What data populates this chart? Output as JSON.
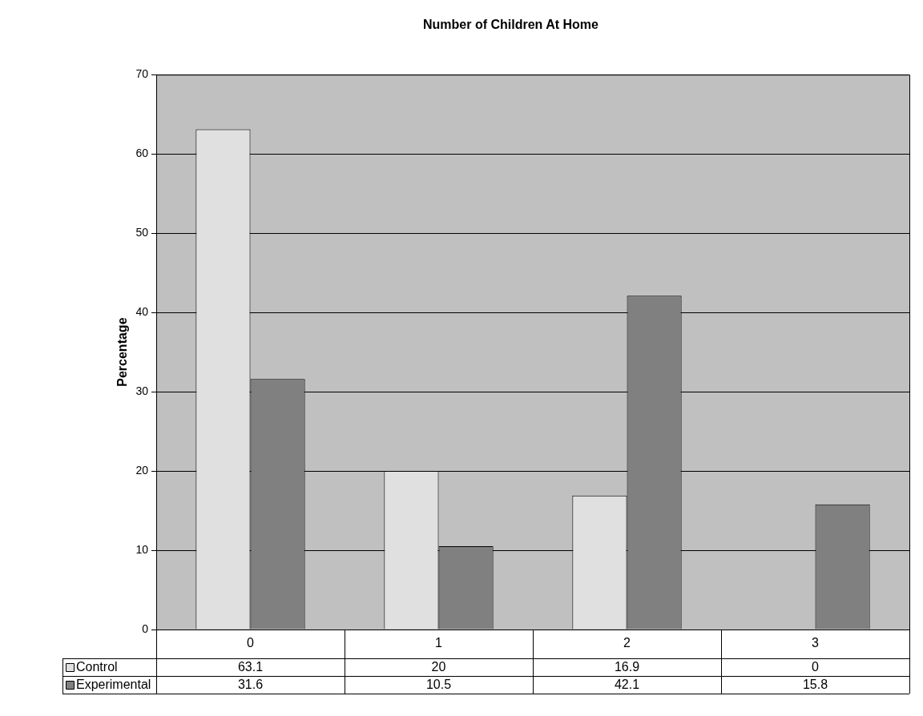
{
  "chart_data": {
    "type": "bar",
    "title": "Number of Children At Home",
    "ylabel": "Percentage",
    "categories": [
      "0",
      "1",
      "2",
      "3"
    ],
    "series": [
      {
        "name": "Control",
        "color": "#e0e0e0",
        "values": [
          63.1,
          20,
          16.9,
          0
        ]
      },
      {
        "name": "Experimental",
        "color": "#808080",
        "values": [
          31.6,
          10.5,
          42.1,
          15.8
        ]
      }
    ],
    "ylim": [
      0,
      70
    ],
    "yticks": [
      0,
      10,
      20,
      30,
      40,
      50,
      60,
      70
    ],
    "grid": "y",
    "legend": "bottom",
    "data_labels": true
  }
}
